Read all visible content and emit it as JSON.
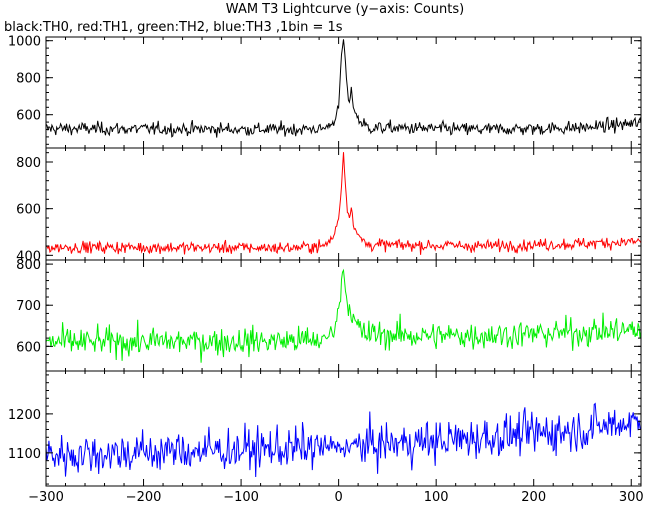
{
  "title": "WAM T3 Lightcurve (y−axis: Counts)",
  "subtitle": "black:TH0, red:TH1, green:TH2, blue:TH3 ,1bin = 1s",
  "chart_data": {
    "type": "line",
    "title": "WAM T3 Lightcurve (y−axis: Counts)",
    "subtitle": "black:TH0, red:TH1, green:TH2, blue:TH3 ,1bin = 1s",
    "xlabel": "",
    "xlim": [
      -300,
      310
    ],
    "xticks": [
      -300,
      -200,
      -100,
      0,
      100,
      200,
      300
    ],
    "grid": false,
    "panels": [
      {
        "name": "TH0",
        "color": "#000000",
        "ylim": [
          420,
          1020
        ],
        "yticks": [
          600,
          800,
          1000
        ],
        "ytick_labels": [
          "600",
          "800",
          "1000"
        ],
        "profile": [
          [
            -300,
            525
          ],
          [
            -50,
            520
          ],
          [
            -15,
            525
          ],
          [
            -5,
            560
          ],
          [
            0,
            640
          ],
          [
            3,
            920
          ],
          [
            5,
            1010
          ],
          [
            7,
            880
          ],
          [
            9,
            720
          ],
          [
            11,
            650
          ],
          [
            13,
            760
          ],
          [
            15,
            640
          ],
          [
            20,
            575
          ],
          [
            30,
            530
          ],
          [
            150,
            520
          ],
          [
            250,
            530
          ],
          [
            310,
            555
          ]
        ],
        "noise": 25
      },
      {
        "name": "TH1",
        "color": "#ff0000",
        "ylim": [
          380,
          860
        ],
        "yticks": [
          400,
          600,
          800
        ],
        "ytick_labels": [
          "400",
          "600",
          "800"
        ],
        "profile": [
          [
            -300,
            435
          ],
          [
            -50,
            432
          ],
          [
            -15,
            440
          ],
          [
            -5,
            480
          ],
          [
            0,
            560
          ],
          [
            3,
            700
          ],
          [
            5,
            840
          ],
          [
            7,
            700
          ],
          [
            9,
            600
          ],
          [
            11,
            560
          ],
          [
            13,
            610
          ],
          [
            15,
            540
          ],
          [
            20,
            480
          ],
          [
            30,
            445
          ],
          [
            150,
            440
          ],
          [
            250,
            450
          ],
          [
            310,
            460
          ]
        ],
        "noise": 18
      },
      {
        "name": "TH2",
        "color": "#00ee00",
        "ylim": [
          540,
          810
        ],
        "yticks": [
          600,
          700,
          800
        ],
        "ytick_labels": [
          "600",
          "700",
          "800"
        ],
        "profile": [
          [
            -300,
            610
          ],
          [
            -100,
            612
          ],
          [
            -15,
            615
          ],
          [
            -5,
            640
          ],
          [
            0,
            690
          ],
          [
            3,
            750
          ],
          [
            5,
            795
          ],
          [
            7,
            745
          ],
          [
            9,
            700
          ],
          [
            12,
            690
          ],
          [
            16,
            660
          ],
          [
            25,
            630
          ],
          [
            100,
            625
          ],
          [
            200,
            630
          ],
          [
            310,
            640
          ]
        ],
        "noise": 24
      },
      {
        "name": "TH3",
        "color": "#0000ff",
        "ylim": [
          1015,
          1310
        ],
        "yticks": [
          1100,
          1200
        ],
        "ytick_labels": [
          "1100",
          "1200"
        ],
        "profile": [
          [
            -300,
            1095
          ],
          [
            -150,
            1105
          ],
          [
            0,
            1115
          ],
          [
            100,
            1130
          ],
          [
            200,
            1150
          ],
          [
            250,
            1160
          ],
          [
            310,
            1185
          ]
        ],
        "noise": 38
      }
    ]
  }
}
